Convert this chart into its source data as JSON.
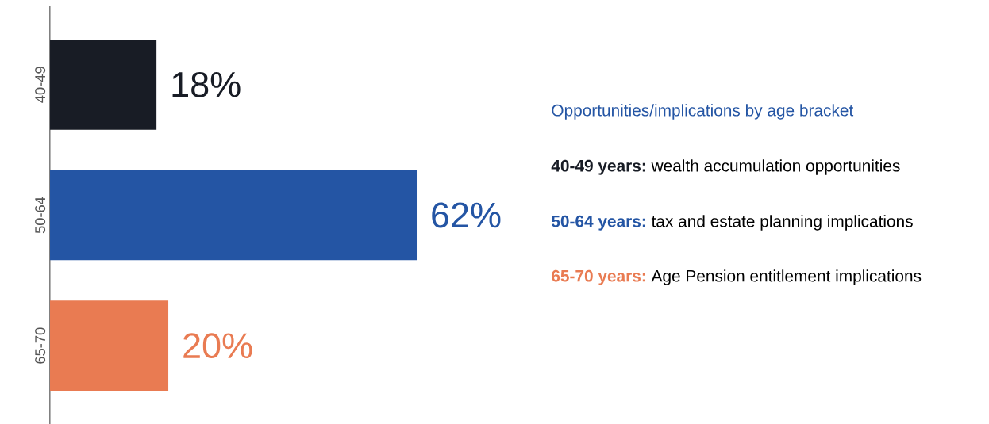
{
  "chart_data": {
    "type": "bar",
    "orientation": "horizontal",
    "categories": [
      "40-49",
      "50-64",
      "65-70"
    ],
    "values": [
      18,
      62,
      20
    ],
    "colors": [
      "#181c25",
      "#2455a4",
      "#e97b52"
    ],
    "value_labels": [
      "18%",
      "62%",
      "20%"
    ],
    "annotations": [
      "Opportunities/implications by age bracket",
      "40-49 years:",
      "wealth accumulation opportunities",
      "50-64 years:",
      "tax and estate planning implications",
      "65-70 years:",
      "Age Pension entitlement implications"
    ]
  }
}
